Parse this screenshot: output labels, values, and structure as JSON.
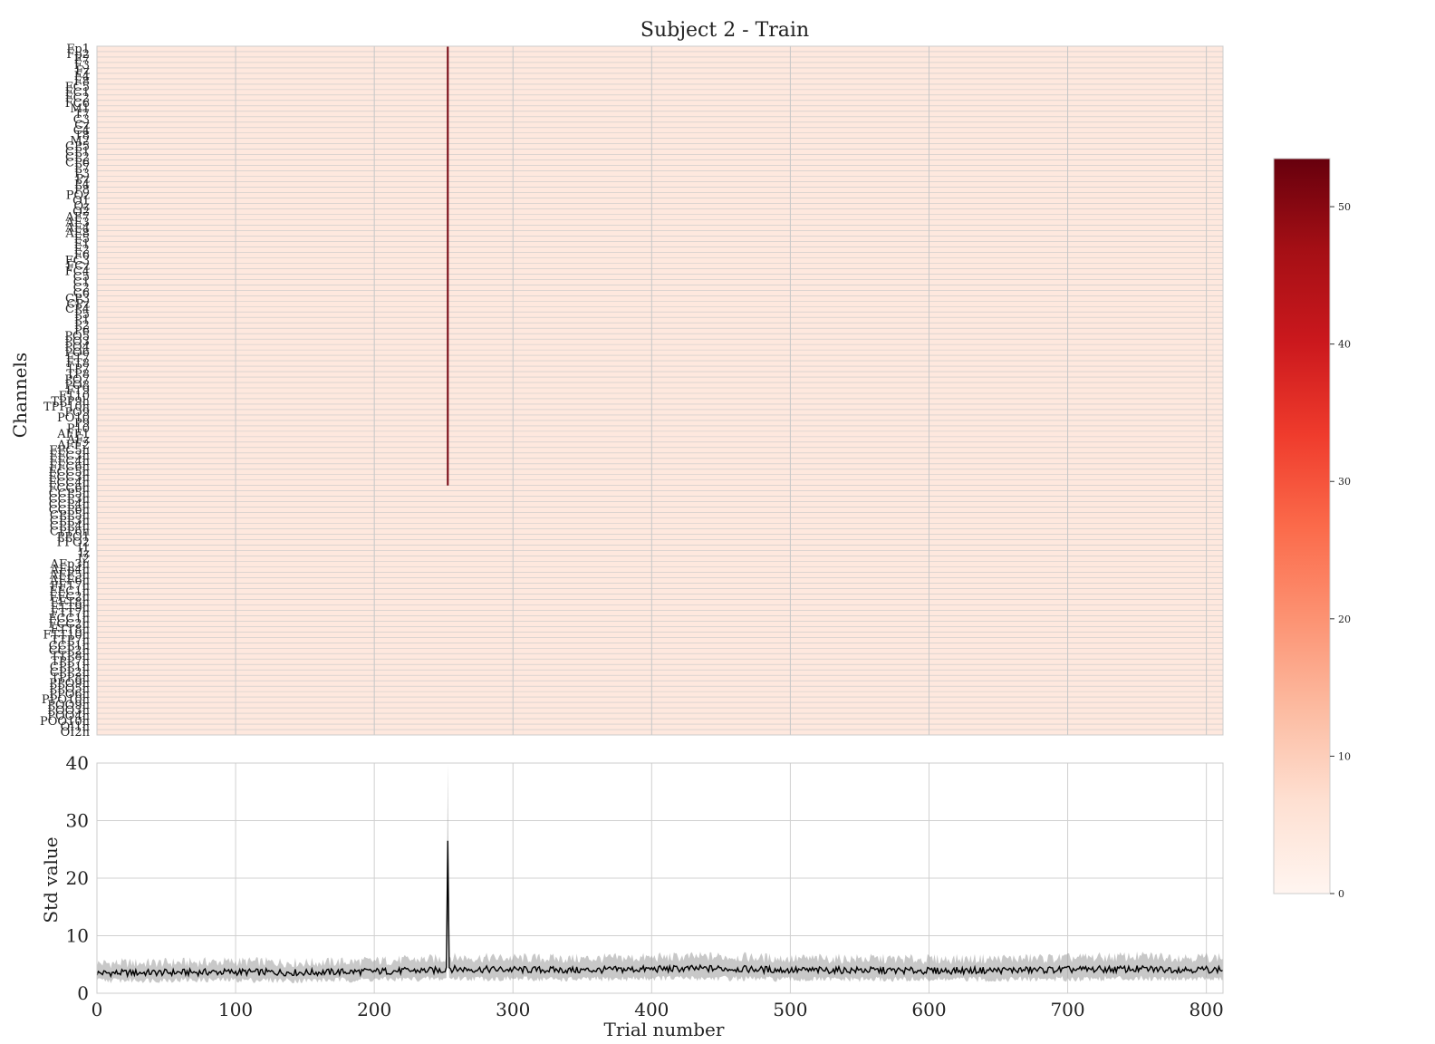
{
  "chart_data": [
    {
      "type": "heatmap",
      "title": "Subject 2 - Train",
      "ylabel": "Channels",
      "xlabel": "",
      "xlim": [
        0,
        812
      ],
      "x_ticks": [
        0,
        100,
        200,
        300,
        400,
        500,
        600,
        700,
        800
      ],
      "channels": [
        "Fp1",
        "Fp2",
        "F7",
        "F3",
        "Fz",
        "F4",
        "F8",
        "FC5",
        "FC1",
        "FC2",
        "FC6",
        "M1",
        "T7",
        "C3",
        "Cz",
        "C4",
        "T8",
        "M2",
        "CP5",
        "CP1",
        "CP2",
        "CP6",
        "P7",
        "P3",
        "Pz",
        "P4",
        "P8",
        "POz",
        "O1",
        "Oz",
        "O2",
        "AF7",
        "AF3",
        "AF4",
        "AF8",
        "F5",
        "F1",
        "F2",
        "F6",
        "FC3",
        "FCz",
        "FC4",
        "C5",
        "C1",
        "C2",
        "C6",
        "CP3",
        "CPz",
        "CP4",
        "P5",
        "P1",
        "P2",
        "P6",
        "PO5",
        "PO3",
        "PO4",
        "PO6",
        "FT7",
        "FT8",
        "TP7",
        "TP8",
        "PO7",
        "PO8",
        "FT9",
        "FT10",
        "TPP9h",
        "TPP10h",
        "PO9",
        "PO10",
        "P9",
        "P10",
        "AFF1",
        "AFz",
        "AFF2",
        "FFC5h",
        "FFC3h",
        "FFC4h",
        "FFC6h",
        "FCC5h",
        "FCC3h",
        "FCC4h",
        "FCC6h",
        "CCP5h",
        "CCP3h",
        "CCP4h",
        "CCP6h",
        "CPP5h",
        "CPP3h",
        "CPP4h",
        "CPP6h",
        "PPO1",
        "PPO2",
        "I1",
        "Iz",
        "I2",
        "AFp3h",
        "AFp4h",
        "AFF5h",
        "AFF6h",
        "FFT7h",
        "FFC1h",
        "FFC2h",
        "FFT8h",
        "FTT9h",
        "FTT7h",
        "FCC1h",
        "FCC2h",
        "FTT8h",
        "FTT10h",
        "TTP7h",
        "CCP1h",
        "CCP2h",
        "TTP8h",
        "TPP7h",
        "CPP1h",
        "CPP2h",
        "TPP8h",
        "PPO9h",
        "PPO5h",
        "PPO6h",
        "PPO10h",
        "POO9h",
        "POO3h",
        "POO4h",
        "POO10h",
        "OI1h",
        "OI2h"
      ],
      "colorbar": {
        "colormap": "Reds",
        "vmin": 0,
        "vmax": 53.5,
        "ticks": [
          0,
          10,
          20,
          30,
          40,
          50
        ]
      },
      "baseline_value": 4,
      "outlier_trials": [
        {
          "trial": 253,
          "value": 52,
          "channel_range": [
            0,
            80
          ]
        }
      ]
    },
    {
      "type": "line",
      "title": "",
      "xlabel": "Trial number",
      "ylabel": "Std value",
      "xlim": [
        0,
        812
      ],
      "ylim": [
        0,
        40
      ],
      "x_ticks": [
        0,
        100,
        200,
        300,
        400,
        500,
        600,
        700,
        800
      ],
      "y_ticks": [
        0,
        10,
        20,
        30,
        40
      ],
      "grid": true,
      "series": [
        {
          "kind": "mean",
          "x": [
            0,
            50,
            100,
            150,
            200,
            250,
            252,
            253,
            254,
            256,
            300,
            350,
            400,
            450,
            500,
            550,
            600,
            650,
            700,
            750,
            812
          ],
          "y": [
            3.5,
            3.6,
            3.7,
            3.6,
            3.8,
            4.0,
            4.5,
            26.5,
            4.5,
            4.2,
            4.1,
            4.0,
            4.2,
            4.3,
            4.0,
            4.0,
            3.9,
            4.0,
            4.1,
            4.2,
            4.1
          ]
        },
        {
          "kind": "band",
          "x": [
            0,
            50,
            100,
            150,
            200,
            250,
            252,
            253,
            254,
            256,
            300,
            350,
            400,
            450,
            500,
            550,
            600,
            650,
            700,
            750,
            812
          ],
          "y_low": [
            2.2,
            2.3,
            2.3,
            2.2,
            2.4,
            2.5,
            2.6,
            13.0,
            2.6,
            2.6,
            2.5,
            2.4,
            2.6,
            2.6,
            2.4,
            2.4,
            2.4,
            2.4,
            2.5,
            2.6,
            2.5
          ],
          "y_high": [
            5.2,
            5.3,
            5.5,
            5.3,
            5.6,
            6.0,
            6.5,
            40.0,
            6.5,
            6.2,
            6.1,
            6.0,
            6.2,
            6.4,
            6.0,
            6.0,
            5.9,
            6.0,
            6.1,
            6.4,
            6.2
          ]
        }
      ]
    }
  ]
}
